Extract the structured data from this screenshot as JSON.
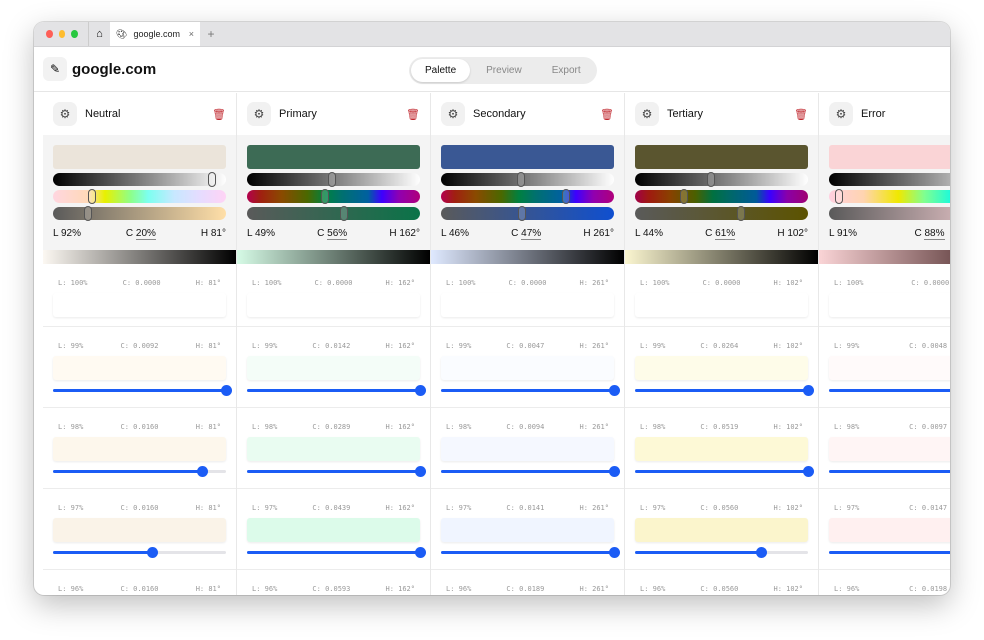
{
  "browser": {
    "tab_title": "google.com",
    "tab_icon": "palette-icon",
    "close": "×",
    "new_tab": "+",
    "home_icon": "⌂"
  },
  "header": {
    "title": "google.com",
    "edit_icon": "✎",
    "modes": [
      "Palette",
      "Preview",
      "Export"
    ],
    "active_mode": "Palette"
  },
  "accent": "#1b5cf5",
  "columns": [
    {
      "name": "Neutral",
      "base": "#ebe4da",
      "L": "L 92%",
      "C": "20%",
      "H": "H 81°",
      "l": 92,
      "c": 20,
      "h": 81,
      "chroma_end": "#ffdfa8",
      "hue_grad": "linear-gradient(90deg,#ffd6e0,#ffd9b8 20%,#e8f000 30%,#8dff8a 45%,#7cfff0 55%,#c7e8ff 70%,#e6dcff 85%,#ffd3f5)",
      "strip": [
        "#fcf8f2",
        "#000"
      ],
      "rows": [
        {
          "L": "L: 100%",
          "C": "C: 0.0000",
          "H": "H: 81°",
          "color": "#ffffff"
        },
        {
          "L": "L: 99%",
          "C": "C: 0.0092",
          "H": "H: 81°",
          "color": "#fffaf2",
          "slider": 100
        },
        {
          "L": "L: 98%",
          "C": "C: 0.0160",
          "H": "H: 81°",
          "color": "#fdf7ec",
          "slider": 86
        },
        {
          "L": "L: 97%",
          "C": "C: 0.0160",
          "H": "H: 81°",
          "color": "#faf3e8",
          "slider": 57
        },
        {
          "L": "L: 96%",
          "C": "C: 0.0160",
          "H": "H: 81°",
          "color": "#f6efe3"
        }
      ]
    },
    {
      "name": "Primary",
      "base": "#3d6b55",
      "L": "L 49%",
      "C": "56%",
      "H": "H 162°",
      "l": 49,
      "c": 56,
      "h": 162,
      "chroma_end": "#0a7348",
      "hue_grad": "linear-gradient(90deg,#b3004f,#a02010 8%,#8a4a00 20%,#4a6800 35%,#008040 45%,#007070 55%,#0060a0 70%,#3d00ff 78%,#9000b0 88%,#b0007a)",
      "strip": [
        "#d6fbe6",
        "#000"
      ],
      "rows": [
        {
          "L": "L: 100%",
          "C": "C: 0.0000",
          "H": "H: 162°",
          "color": "#ffffff"
        },
        {
          "L": "L: 99%",
          "C": "C: 0.0142",
          "H": "H: 162°",
          "color": "#f4fdf8",
          "slider": 100
        },
        {
          "L": "L: 98%",
          "C": "C: 0.0289",
          "H": "H: 162°",
          "color": "#e9fcf1",
          "slider": 100
        },
        {
          "L": "L: 97%",
          "C": "C: 0.0439",
          "H": "H: 162°",
          "color": "#dcfbea",
          "slider": 100
        },
        {
          "L": "L: 96%",
          "C": "C: 0.0593",
          "H": "H: 162°",
          "color": "#cff9e2"
        }
      ]
    },
    {
      "name": "Secondary",
      "base": "#3a5894",
      "L": "L 46%",
      "C": "47%",
      "H": "H 261°",
      "l": 46,
      "c": 47,
      "h": 261,
      "chroma_end": "#0f4fd0",
      "hue_grad": "linear-gradient(90deg,#b3004f,#a02010 8%,#8a4a00 20%,#4a6800 35%,#008040 45%,#007070 55%,#0060a0 70%,#3d00ff 78%,#9000b0 88%,#b0007a)",
      "strip": [
        "#dfe9ff",
        "#000"
      ],
      "rows": [
        {
          "L": "L: 100%",
          "C": "C: 0.0000",
          "H": "H: 261°",
          "color": "#ffffff"
        },
        {
          "L": "L: 99%",
          "C": "C: 0.0047",
          "H": "H: 261°",
          "color": "#fafcff",
          "slider": 100
        },
        {
          "L": "L: 98%",
          "C": "C: 0.0094",
          "H": "H: 261°",
          "color": "#f5f8ff",
          "slider": 100
        },
        {
          "L": "L: 97%",
          "C": "C: 0.0141",
          "H": "H: 261°",
          "color": "#f0f5ff",
          "slider": 100
        },
        {
          "L": "L: 96%",
          "C": "C: 0.0189",
          "H": "H: 261°",
          "color": "#ebf1fe"
        }
      ]
    },
    {
      "name": "Tertiary",
      "base": "#5a552f",
      "L": "L 44%",
      "C": "61%",
      "H": "H 102°",
      "l": 44,
      "c": 61,
      "h": 102,
      "chroma_end": "#5c5300",
      "hue_grad": "linear-gradient(90deg,#a0004a,#a01a10 8%,#8a4000 20%,#4a6000 35%,#007040 45%,#006868 55%,#005a98 70%,#3a00ff 78%,#8a00a8 88%,#a00070)",
      "strip": [
        "#fbf6d0",
        "#000"
      ],
      "rows": [
        {
          "L": "L: 100%",
          "C": "C: 0.0000",
          "H": "H: 102°",
          "color": "#ffffff"
        },
        {
          "L": "L: 99%",
          "C": "C: 0.0264",
          "H": "H: 102°",
          "color": "#fefce9",
          "slider": 100
        },
        {
          "L": "L: 98%",
          "C": "C: 0.0519",
          "H": "H: 102°",
          "color": "#fdf9d6",
          "slider": 100
        },
        {
          "L": "L: 97%",
          "C": "C: 0.0560",
          "H": "H: 102°",
          "color": "#fbf5cc",
          "slider": 73
        },
        {
          "L": "L: 96%",
          "C": "C: 0.0560",
          "H": "H: 102°",
          "color": "#f8f1c4"
        }
      ]
    },
    {
      "name": "Error",
      "base": "#fad4d6",
      "L": "L 91%",
      "C": "88%",
      "H": "",
      "l": 91,
      "c": 88,
      "h": 20,
      "chroma_end": "#f6d0d4",
      "hue_grad": "linear-gradient(90deg,#ffd0e0,#ffd4b0 20%,#f0e800 40%,#80ff90 55%,#00f8f0 75%,#c0e8ff 90%)",
      "strip": [
        "#fad4d6",
        "#3a1a1a"
      ],
      "rows": [
        {
          "L": "L: 100%",
          "C": "C: 0.0000",
          "H": "",
          "color": "#ffffff"
        },
        {
          "L": "L: 99%",
          "C": "C: 0.0048",
          "H": "",
          "color": "#fffafa",
          "slider": 100
        },
        {
          "L": "L: 98%",
          "C": "C: 0.0097",
          "H": "",
          "color": "#fff5f5",
          "slider": 100
        },
        {
          "L": "L: 97%",
          "C": "C: 0.0147",
          "H": "",
          "color": "#fff0f0",
          "slider": 100
        },
        {
          "L": "L: 96%",
          "C": "C: 0.0198",
          "H": "",
          "color": "#ffebeb"
        }
      ]
    }
  ]
}
